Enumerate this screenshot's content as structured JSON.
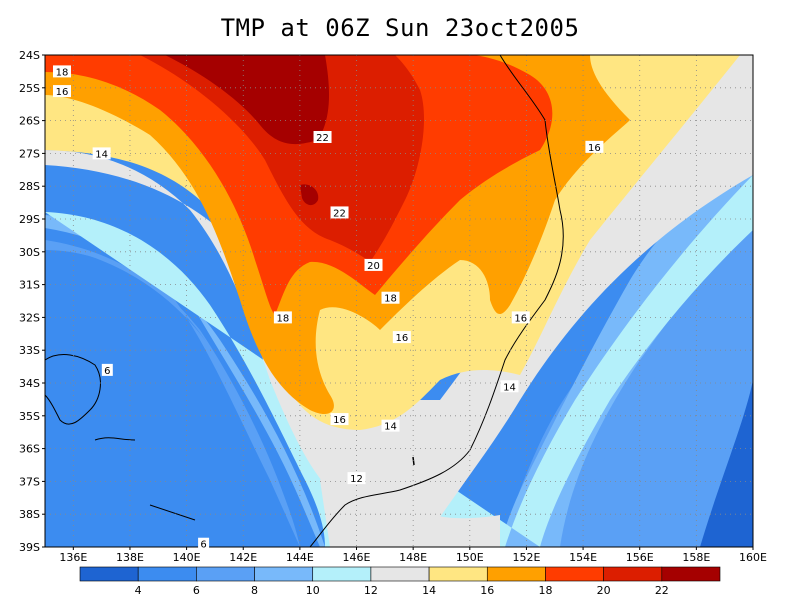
{
  "title": "TMP at 06Z Sun 23oct2005",
  "map": {
    "lat_labels": [
      "24S",
      "25S",
      "26S",
      "27S",
      "28S",
      "29S",
      "30S",
      "31S",
      "32S",
      "33S",
      "34S",
      "35S",
      "36S",
      "37S",
      "38S",
      "39S"
    ],
    "lon_labels": [
      "136E",
      "138E",
      "140E",
      "142E",
      "144E",
      "146E",
      "148E",
      "150E",
      "152E",
      "154E",
      "156E",
      "158E",
      "160E"
    ],
    "contour_labels": [
      {
        "text": "18",
        "lon": 135.6,
        "lat": -24.5
      },
      {
        "text": "16",
        "lon": 135.6,
        "lat": -25.1
      },
      {
        "text": "14",
        "lon": 137.0,
        "lat": -27.0
      },
      {
        "text": "22",
        "lon": 144.8,
        "lat": -26.5
      },
      {
        "text": "22",
        "lon": 145.4,
        "lat": -28.8
      },
      {
        "text": "20",
        "lon": 146.6,
        "lat": -30.4
      },
      {
        "text": "18",
        "lon": 147.2,
        "lat": -31.4
      },
      {
        "text": "18",
        "lon": 143.4,
        "lat": -32.0
      },
      {
        "text": "16",
        "lon": 147.6,
        "lat": -32.6
      },
      {
        "text": "16",
        "lon": 151.8,
        "lat": -32.0
      },
      {
        "text": "16",
        "lon": 154.4,
        "lat": -26.8
      },
      {
        "text": "14",
        "lon": 151.4,
        "lat": -34.1
      },
      {
        "text": "16",
        "lon": 145.4,
        "lat": -35.1
      },
      {
        "text": "14",
        "lon": 147.2,
        "lat": -35.3
      },
      {
        "text": "12",
        "lon": 146.0,
        "lat": -36.9
      },
      {
        "text": "6",
        "lon": 137.2,
        "lat": -33.6
      },
      {
        "text": "6",
        "lon": 140.6,
        "lat": -38.9
      }
    ]
  },
  "colorbar": {
    "tick_labels": [
      "4",
      "6",
      "8",
      "10",
      "12",
      "14",
      "16",
      "18",
      "20",
      "22"
    ],
    "colors": [
      "#1e64d2",
      "#3c8cf0",
      "#5aa0f5",
      "#78b9fa",
      "#b4f0fa",
      "#e6e6e6",
      "#ffe682",
      "#ffa000",
      "#ff3c00",
      "#dc1e00",
      "#a50000"
    ]
  }
}
